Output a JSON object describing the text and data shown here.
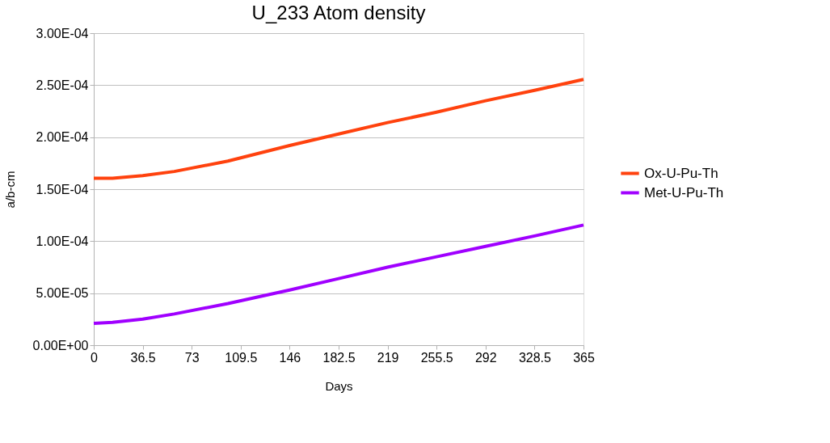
{
  "chart_data": {
    "type": "line",
    "title": "U_233 Atom density",
    "xlabel": "Days",
    "ylabel": "a/b-cm",
    "x": [
      0,
      14,
      36.5,
      60,
      100,
      146,
      182.5,
      219,
      255.5,
      292,
      328.5,
      365
    ],
    "series": [
      {
        "name": "Ox-U-Pu-Th",
        "color": "#ff420e",
        "values": [
          0.0001605,
          0.0001605,
          0.000163,
          0.000167,
          0.000177,
          0.000192,
          0.000203,
          0.000214,
          0.000224,
          0.000235,
          0.000245,
          0.0002555
        ]
      },
      {
        "name": "Met-U-Pu-Th",
        "color": "#a000ff",
        "values": [
          2.1e-05,
          2.2e-05,
          2.5e-05,
          3e-05,
          4e-05,
          5.3e-05,
          6.4e-05,
          7.5e-05,
          8.5e-05,
          9.5e-05,
          0.000105,
          0.0001155
        ]
      }
    ],
    "xlim": [
      0,
      365
    ],
    "xticks": [
      0,
      36.5,
      73,
      109.5,
      146,
      182.5,
      219,
      255.5,
      292,
      328.5,
      365
    ],
    "ylim": [
      0,
      0.0003
    ],
    "yticks": [
      {
        "value": 0,
        "label": "0.00E+00"
      },
      {
        "value": 5e-05,
        "label": "5.00E-05"
      },
      {
        "value": 0.0001,
        "label": "1.00E-04"
      },
      {
        "value": 0.00015,
        "label": "1.50E-04"
      },
      {
        "value": 0.0002,
        "label": "2.00E-04"
      },
      {
        "value": 0.00025,
        "label": "2.50E-04"
      },
      {
        "value": 0.0003,
        "label": "3.00E-04"
      }
    ],
    "grid": "y",
    "legend": "right",
    "marker": "none",
    "line_style": "solid"
  }
}
